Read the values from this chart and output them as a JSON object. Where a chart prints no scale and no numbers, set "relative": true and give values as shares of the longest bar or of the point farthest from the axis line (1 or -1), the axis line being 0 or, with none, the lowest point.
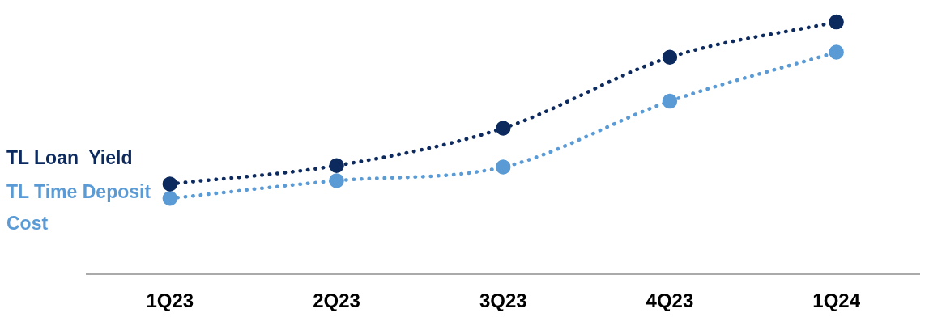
{
  "chart_data": {
    "type": "line",
    "relative": true,
    "categories": [
      "1Q23",
      "2Q23",
      "3Q23",
      "4Q23",
      "1Q24"
    ],
    "series": [
      {
        "name": "TL Loan  Yield",
        "color": "#0d2a5e",
        "values": [
          0.358,
          0.431,
          0.579,
          0.86,
          1
        ]
      },
      {
        "name": "TL Time Deposit Cost",
        "color": "#5b9bd5",
        "values": [
          0.301,
          0.371,
          0.425,
          0.686,
          0.88
        ]
      }
    ],
    "marker": "circle",
    "line_style": "dotted",
    "legend": false,
    "grid": false
  }
}
